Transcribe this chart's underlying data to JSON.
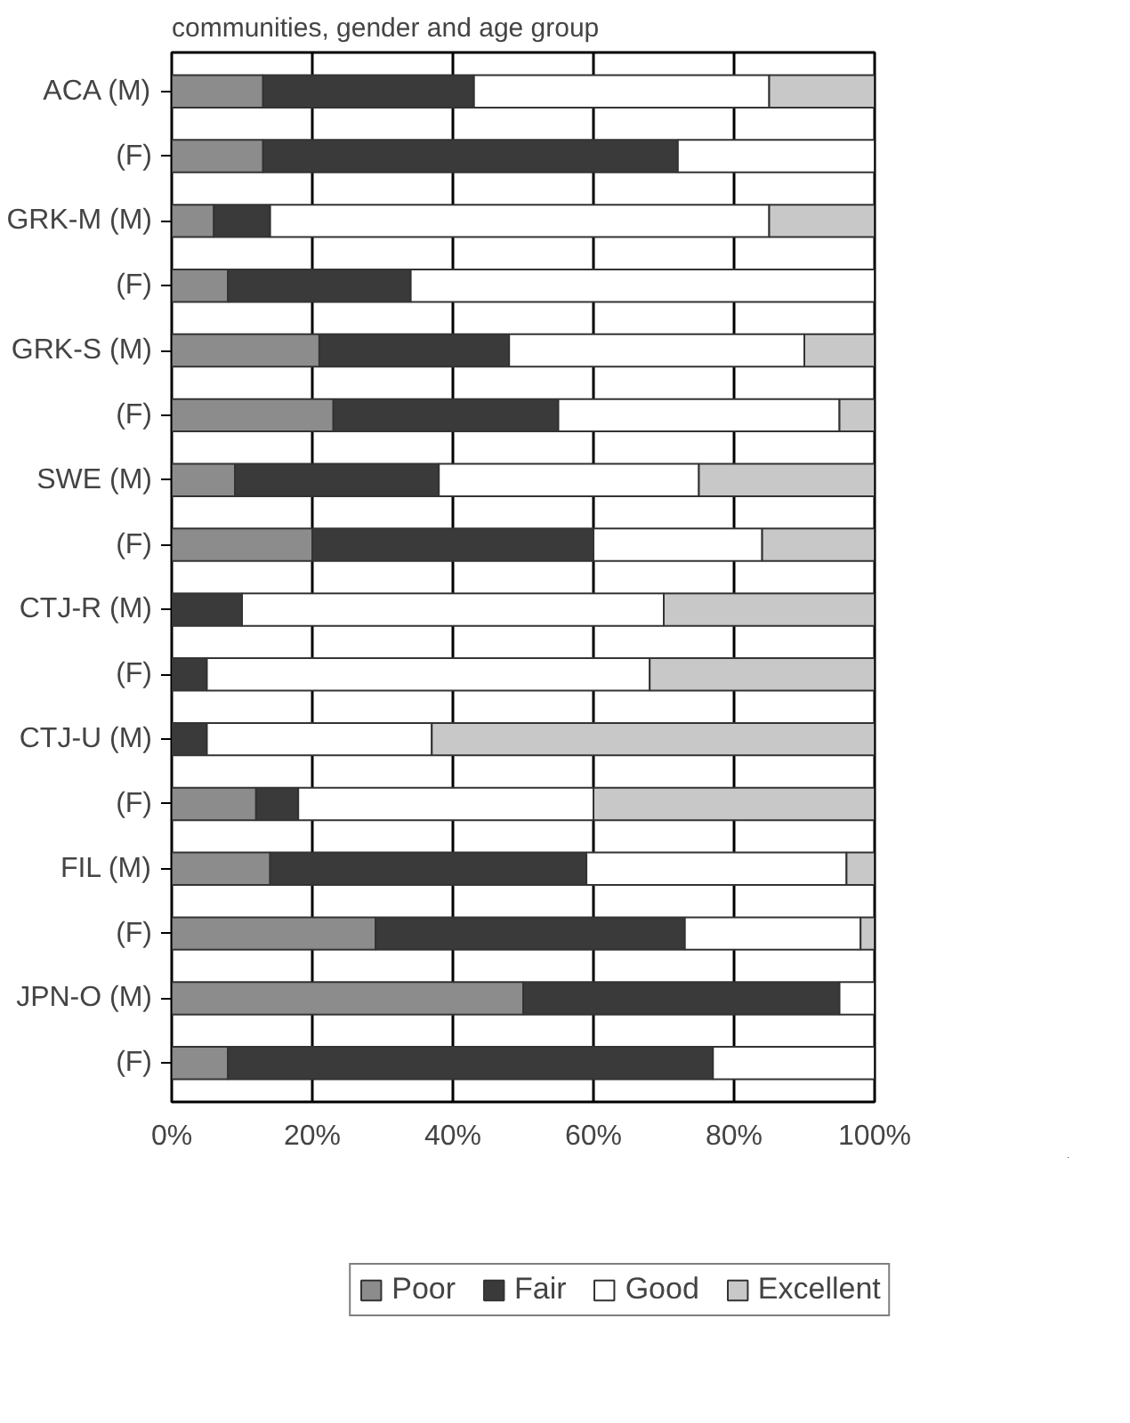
{
  "chart_data": {
    "type": "bar",
    "orientation": "horizontal",
    "stacked": true,
    "title": "communities, gender and age group",
    "categories": [
      "ACA (M)",
      "(F)",
      "GRK-M (M)",
      "(F)",
      "GRK-S (M)",
      "(F)",
      "SWE (M)",
      "(F)",
      "CTJ-R (M)",
      "(F)",
      "CTJ-U (M)",
      "(F)",
      "FIL (M)",
      "(F)",
      "JPN-O (M)",
      "(F)"
    ],
    "series": [
      {
        "name": "Poor",
        "color": "#8c8c8c",
        "values": [
          13,
          13,
          6,
          8,
          21,
          23,
          9,
          20,
          0,
          0,
          0,
          12,
          14,
          29,
          50,
          8
        ]
      },
      {
        "name": "Fair",
        "color": "#3a3a3a",
        "values": [
          30,
          59,
          8,
          26,
          27,
          32,
          29,
          40,
          10,
          5,
          5,
          6,
          45,
          44,
          45,
          69
        ]
      },
      {
        "name": "Good",
        "color": "#ffffff",
        "values": [
          42,
          28,
          71,
          66,
          42,
          40,
          37,
          24,
          60,
          63,
          32,
          42,
          37,
          25,
          5,
          23
        ]
      },
      {
        "name": "Excellent",
        "color": "#c8c8c8",
        "values": [
          15,
          0,
          15,
          0,
          10,
          5,
          25,
          16,
          30,
          32,
          63,
          40,
          4,
          2,
          0,
          0
        ]
      }
    ],
    "xlim": [
      0,
      100
    ],
    "xticks": [
      {
        "value": 0,
        "label": "0%"
      },
      {
        "value": 20,
        "label": "20%"
      },
      {
        "value": 40,
        "label": "40%"
      },
      {
        "value": 60,
        "label": "60%"
      },
      {
        "value": 80,
        "label": "80%"
      },
      {
        "value": 100,
        "label": "100%"
      }
    ],
    "grid": "x",
    "legend": "bottom"
  }
}
